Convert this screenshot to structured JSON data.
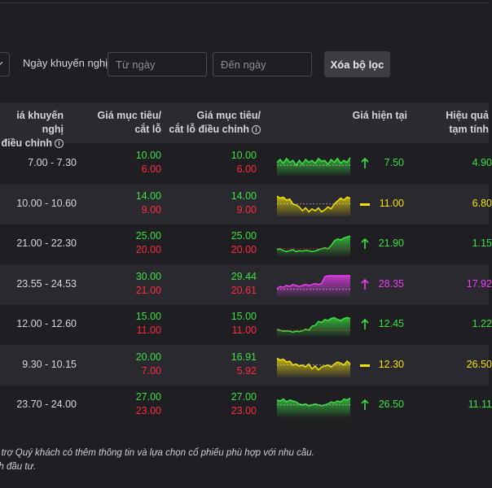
{
  "filters": {
    "recommend_date_label": "Ngày khuyến nghị",
    "from_date_placeholder": "Từ ngày",
    "to_date_placeholder": "Đến ngày",
    "clear_button_label": "Xóa bộ lọc"
  },
  "table": {
    "headers": {
      "range_line1": "iá khuyến nghị",
      "range_line2": "điều chỉnh",
      "target_line1": "Giá mục tiêu/",
      "target_line2": "cắt lỗ",
      "target_adj_line1": "Giá mục tiêu/",
      "target_adj_line2": "cắt lỗ điều chỉnh",
      "current": "Giá hiện tại",
      "perf_line1": "Hiệu quả",
      "perf_line2": "tạm tính"
    },
    "info_icon_glyph": "i",
    "rows": [
      {
        "range": "7.00 - 7.30",
        "target": "10.00",
        "stop": "6.00",
        "target_adj": "10.00",
        "stop_adj": "6.00",
        "trend": "up",
        "price": "7.50",
        "perf": "4.90",
        "spark": [
          0.6,
          0.75,
          0.55,
          0.8,
          0.6,
          0.7,
          0.45,
          0.7,
          0.5,
          0.75,
          0.6,
          0.7,
          0.55,
          0.8,
          0.65,
          0.7,
          0.5,
          0.75,
          0.6,
          0.8,
          0.55,
          0.7,
          0.6,
          0.85
        ],
        "spark_base": 0.45,
        "color": "#39e33f",
        "baseline_color": "#d8d8dc"
      },
      {
        "range": "10.00 - 10.60",
        "target": "14.00",
        "stop": "9.00",
        "target_adj": "14.00",
        "stop_adj": "9.00",
        "trend": "flat",
        "price": "11.00",
        "perf": "6.80",
        "spark": [
          0.95,
          0.85,
          0.9,
          0.75,
          0.8,
          0.55,
          0.5,
          0.4,
          0.2,
          0.35,
          0.15,
          0.3,
          0.2,
          0.35,
          0.15,
          0.25,
          0.4,
          0.3,
          0.55,
          0.7,
          0.85,
          0.75,
          0.9,
          0.85
        ],
        "spark_base": 0.55,
        "color": "#f5e400",
        "baseline_color": "#d8d8dc"
      },
      {
        "range": "21.00 - 22.30",
        "target": "25.00",
        "stop": "20.00",
        "target_adj": "25.00",
        "stop_adj": "20.00",
        "trend": "up",
        "price": "21.90",
        "perf": "1.15",
        "spark": [
          0.25,
          0.3,
          0.2,
          0.15,
          0.2,
          0.25,
          0.15,
          0.2,
          0.18,
          0.22,
          0.2,
          0.15,
          0.18,
          0.25,
          0.3,
          0.35,
          0.3,
          0.45,
          0.7,
          0.8,
          0.75,
          0.85,
          0.9,
          0.95
        ],
        "spark_base": 0.3,
        "color": "#39e33f",
        "baseline_color": "#ff2c3c"
      },
      {
        "range": "23.55 - 24.53",
        "target": "30.00",
        "stop": "21.00",
        "target_adj": "29.44",
        "stop_adj": "20.61",
        "trend": "up",
        "price": "28.35",
        "perf": "17.92",
        "spark": [
          0.35,
          0.45,
          0.4,
          0.5,
          0.45,
          0.55,
          0.5,
          0.45,
          0.5,
          0.55,
          0.5,
          0.55,
          0.6,
          0.55,
          0.6,
          0.95,
          1.0,
          1.0,
          1.0,
          1.0,
          1.0,
          1.0,
          1.0,
          1.0
        ],
        "spark_base": 0.3,
        "color": "#f03cf5",
        "baseline_color": "#d8d8dc"
      },
      {
        "range": "12.00 - 12.60",
        "target": "15.00",
        "stop": "11.00",
        "target_adj": "15.00",
        "stop_adj": "11.00",
        "trend": "up",
        "price": "12.45",
        "perf": "1.22",
        "spark": [
          0.3,
          0.25,
          0.2,
          0.22,
          0.2,
          0.15,
          0.2,
          0.18,
          0.22,
          0.3,
          0.25,
          0.45,
          0.5,
          0.7,
          0.65,
          0.8,
          0.75,
          0.85,
          0.9,
          0.8,
          0.75,
          0.85,
          0.9,
          0.85
        ],
        "spark_base": 0.25,
        "color": "#39e33f",
        "baseline_color": "#ff2c3c"
      },
      {
        "range": "9.30 - 10.15",
        "target": "20.00",
        "stop": "7.00",
        "target_adj": "16.91",
        "stop_adj": "5.92",
        "trend": "flat",
        "price": "12.30",
        "perf": "26.50",
        "spark": [
          0.9,
          0.8,
          0.85,
          0.7,
          0.75,
          0.55,
          0.6,
          0.5,
          0.55,
          0.45,
          0.6,
          0.35,
          0.5,
          0.3,
          0.45,
          0.5,
          0.55,
          0.45,
          0.6,
          0.7,
          0.65,
          0.55,
          0.75,
          0.6
        ],
        "spark_base": 0.55,
        "color": "#f5e400",
        "baseline_color": "#d8d8dc"
      },
      {
        "range": "23.70 - 24.00",
        "target": "27.00",
        "stop": "23.00",
        "target_adj": "27.00",
        "stop_adj": "23.00",
        "trend": "up",
        "price": "26.50",
        "perf": "11.11",
        "spark": [
          0.8,
          0.75,
          0.85,
          0.7,
          0.8,
          0.75,
          0.7,
          0.6,
          0.55,
          0.6,
          0.5,
          0.55,
          0.6,
          0.55,
          0.5,
          0.55,
          0.6,
          0.7,
          0.65,
          0.75,
          0.7,
          0.85,
          0.8,
          0.9
        ],
        "spark_base": 0.55,
        "color": "#39e33f",
        "baseline_color": "#d8d8dc"
      }
    ]
  },
  "footnotes": {
    "line1": "ổ trợ Quý khách có thêm thông tin và lựa chọn cổ phiếu phù hợp với nhu cầu.",
    "line2": "nh đầu tư."
  }
}
